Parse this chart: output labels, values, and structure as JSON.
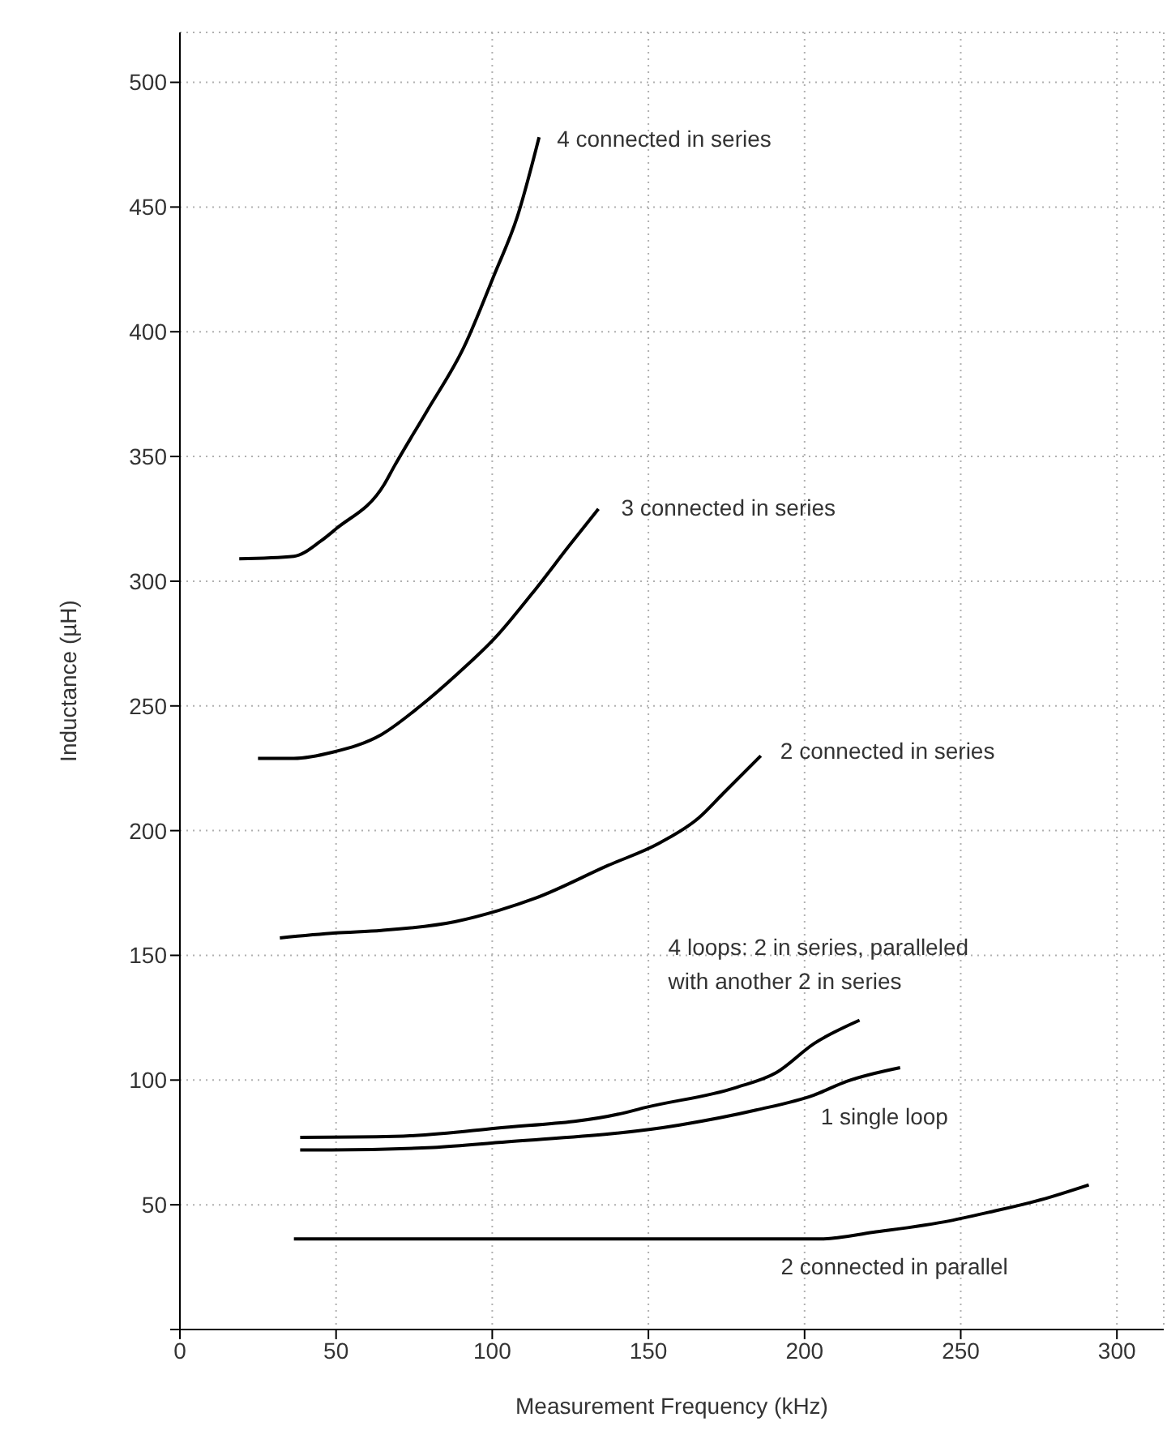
{
  "chart_data": {
    "type": "line",
    "xlabel": "Measurement Frequency (kHz)",
    "ylabel": "Inductance (µH)",
    "xlim": [
      0,
      315
    ],
    "xticks": [
      0,
      50,
      100,
      150,
      200,
      250,
      300
    ],
    "ylim": [
      0,
      520
    ],
    "yticks": [
      {
        "value": 0,
        "label": null
      },
      50,
      100,
      150,
      200,
      250,
      300,
      350,
      400,
      450,
      500
    ],
    "grid": true,
    "marker": "none",
    "line_style": "solid",
    "series": [
      {
        "name": "4 connected in series",
        "color": "#000000",
        "x": [
          19,
          36.5,
          45,
          50,
          65.5,
          68.6,
          79,
          91,
          100.7,
          108,
          115
        ],
        "values": [
          309,
          310,
          316,
          321,
          339,
          346,
          368,
          394,
          423,
          446,
          478
        ]
      },
      {
        "name": "3 connected in series",
        "color": "#000000",
        "x": [
          25,
          36.5,
          49,
          64.5,
          77,
          89,
          100.7,
          114,
          124.5,
          134
        ],
        "values": [
          229,
          229,
          231.5,
          238.5,
          250,
          263,
          277,
          297,
          314,
          329
        ]
      },
      {
        "name": "2 connected in series",
        "color": "#000000",
        "x": [
          32,
          50,
          64.5,
          88,
          102,
          114,
          137,
          153.5,
          166,
          174,
          186
        ],
        "values": [
          157,
          159,
          160,
          163.5,
          168,
          173,
          186,
          195,
          205,
          215,
          230
        ]
      },
      {
        "name": "4 loops: 2 in series, paralleled with another 2 in series",
        "color": "#000000",
        "x": [
          38.5,
          68.6,
          101,
          141,
          149,
          178,
          191,
          203,
          217.6
        ],
        "values": [
          77,
          77.4,
          80.7,
          86.5,
          89,
          97,
          103,
          114.6,
          124
        ]
      },
      {
        "name": "1 single loop",
        "color": "#000000",
        "x": [
          38.5,
          48.5,
          81,
          102,
          160,
          184.5,
          203,
          213.5,
          230.6
        ],
        "values": [
          72,
          72,
          73,
          75,
          82,
          88,
          94,
          99.5,
          105
        ]
      },
      {
        "name": "2 connected in parallel",
        "color": "#000000",
        "x": [
          36.5,
          205,
          222,
          246.6,
          259,
          275.6,
          291
        ],
        "values": [
          36.3,
          36.3,
          39,
          43.6,
          47,
          52,
          58
        ]
      }
    ]
  }
}
